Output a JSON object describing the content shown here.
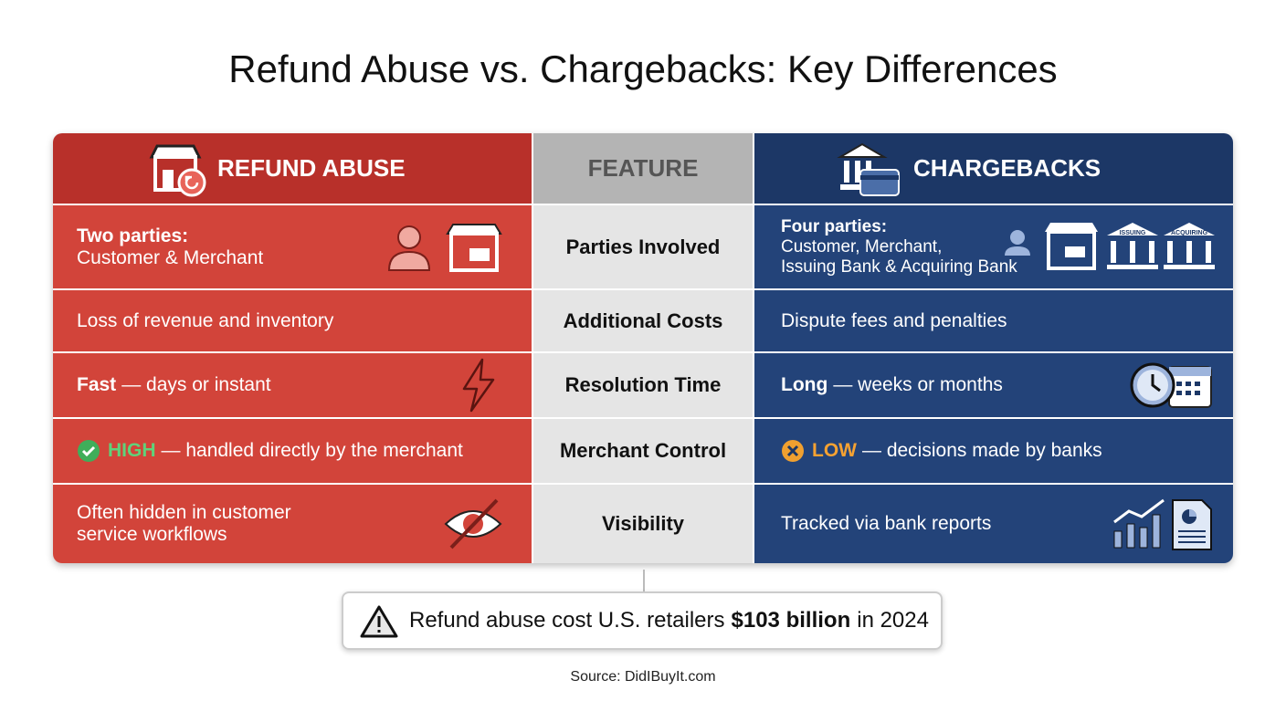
{
  "title": "Refund Abuse vs. Chargebacks: Key Differences",
  "table": {
    "headers": {
      "left": "REFUND ABUSE",
      "feature": "FEATURE",
      "right": "CHARGEBACKS"
    },
    "rows": [
      {
        "feature": "Parties Involved",
        "left": {
          "heading": "Two parties:",
          "lines": [
            "Customer & Merchant"
          ]
        },
        "right": {
          "heading": "Four parties:",
          "lines": [
            "Customer, Merchant,",
            "Issuing Bank & Acquiring Bank"
          ],
          "icon_labels": [
            "ISSUING",
            "ACQUIRING"
          ]
        }
      },
      {
        "feature": "Additional Costs",
        "left": {
          "lines": [
            "Loss of revenue and inventory"
          ]
        },
        "right": {
          "lines": [
            "Dispute fees and penalties"
          ]
        }
      },
      {
        "feature": "Resolution Time",
        "left": {
          "bold": "Fast",
          "text": "— days or instant"
        },
        "right": {
          "bold": "Long",
          "text": "— weeks or months"
        }
      },
      {
        "feature": "Merchant Control",
        "left": {
          "badge": "HIGH",
          "text": "— handled directly by the merchant"
        },
        "right": {
          "badge": "LOW",
          "text": "— decisions made by banks"
        }
      },
      {
        "feature": "Visibility",
        "left": {
          "lines": [
            "Often hidden in customer",
            "service workflows"
          ]
        },
        "right": {
          "lines": [
            "Tracked via bank reports"
          ]
        }
      }
    ]
  },
  "callout": {
    "before": "Refund abuse cost U.S. retailers",
    "highlight": "$103 billion",
    "after": "in 2024"
  },
  "source": "Source: DidIBuyIt.com"
}
